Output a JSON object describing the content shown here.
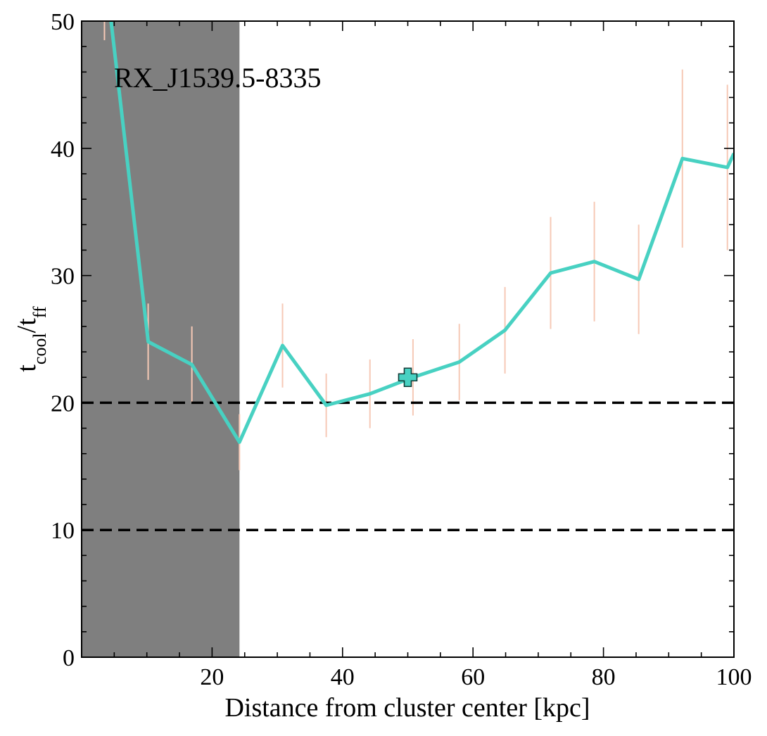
{
  "chart_data": {
    "type": "line",
    "annotation": "RX_J1539.5-8335",
    "xlabel": "Distance from cluster center [kpc]",
    "ylabel": {
      "base1": "t",
      "sub1": "cool",
      "sep": "/",
      "base2": "t",
      "sub2": "ff"
    },
    "xlim": [
      0,
      100
    ],
    "ylim": [
      0,
      50
    ],
    "xticks": [
      20,
      40,
      60,
      80,
      100
    ],
    "yticks": [
      0,
      10,
      20,
      30,
      40,
      50
    ],
    "shaded_region": {
      "x0": 0,
      "x1": 24.2,
      "color": "#7f7f7f"
    },
    "hlines": [
      20,
      10
    ],
    "line_color": "#48d1c2",
    "errorbar_color": "#f6c9b6",
    "series": [
      {
        "x": [
          3.5,
          10.2,
          16.9,
          24.2,
          30.8,
          37.5,
          44.2,
          50.8,
          57.9,
          64.9,
          71.9,
          78.6,
          85.4,
          92.1,
          99.0,
          100
        ],
        "y": [
          54.5,
          24.8,
          23.0,
          16.9,
          24.5,
          19.8,
          20.7,
          22.0,
          23.2,
          25.7,
          30.2,
          31.1,
          29.7,
          39.2,
          38.5,
          39.6
        ],
        "err": [
          6.0,
          3.0,
          3.0,
          2.2,
          3.3,
          2.5,
          2.7,
          3.0,
          3.0,
          3.4,
          4.4,
          4.7,
          4.3,
          7.0,
          6.5,
          0
        ]
      }
    ],
    "marker": {
      "x": 50,
      "y": 22,
      "shape": "plus",
      "color": "#48d1c2"
    }
  }
}
